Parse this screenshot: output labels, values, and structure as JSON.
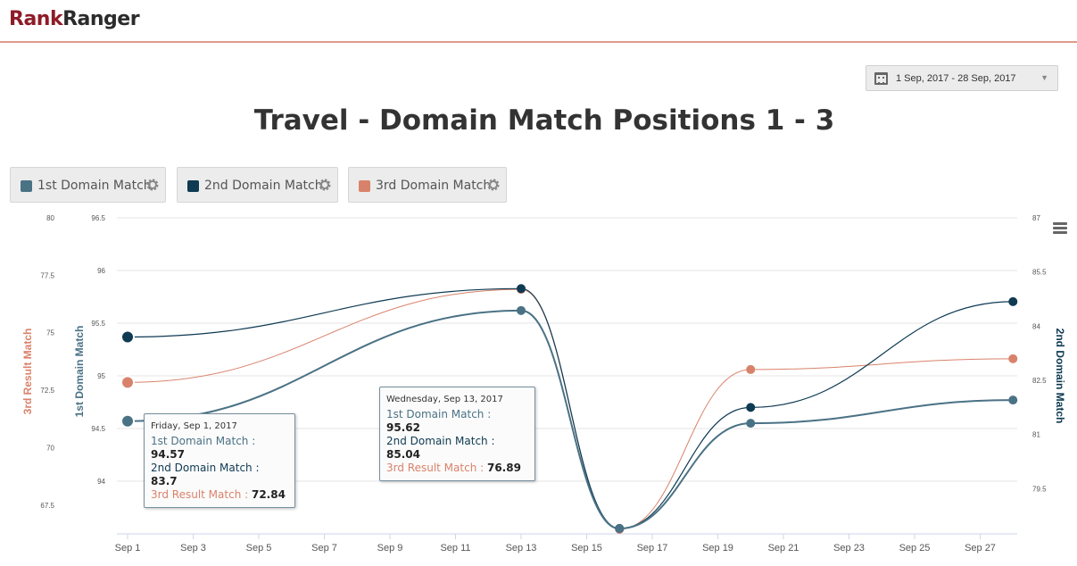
{
  "header": {
    "logo_part1": "Rank",
    "logo_part2": "Ranger"
  },
  "date_range": {
    "label": "1 Sep, 2017 - 28 Sep, 2017"
  },
  "legend": [
    {
      "label": "1st Domain Match",
      "color": "#4a7285"
    },
    {
      "label": "2nd Domain Match",
      "color": "#0e3a52"
    },
    {
      "label": "3rd Domain Match",
      "color": "#d9826b"
    }
  ],
  "tooltips": [
    {
      "date": "Friday, Sep 1, 2017",
      "rows": [
        {
          "label": "1st Domain Match",
          "value": "94.57"
        },
        {
          "label": "2nd Domain Match",
          "value": "83.7"
        },
        {
          "label": "3rd Result Match",
          "value": "72.84"
        }
      ]
    },
    {
      "date": "Wednesday, Sep 13, 2017",
      "rows": [
        {
          "label": "1st Domain Match",
          "value": "95.62"
        },
        {
          "label": "2nd Domain Match",
          "value": "85.04"
        },
        {
          "label": "3rd Result Match",
          "value": "76.89"
        }
      ]
    }
  ],
  "chart_data": {
    "type": "line",
    "title": "Travel - Domain Match Positions 1 - 3",
    "x": [
      "2017-09-01",
      "2017-09-13",
      "2017-09-16",
      "2017-09-20",
      "2017-09-28"
    ],
    "x_tick_labels": [
      "Sep 1",
      "Sep 3",
      "Sep 5",
      "Sep 7",
      "Sep 9",
      "Sep 11",
      "Sep 13",
      "Sep 15",
      "Sep 17",
      "Sep 19",
      "Sep 21",
      "Sep 23",
      "Sep 25",
      "Sep 27"
    ],
    "axes": {
      "left_inner": {
        "label": "1st Domain Match",
        "range": [
          93.5,
          96.5
        ],
        "ticks": [
          "96.5",
          "96",
          "95.5",
          "95",
          "94.5",
          "94"
        ],
        "color": "#4a7285"
      },
      "left_outer": {
        "label": "3rd Result Match",
        "range": [
          66.25,
          80
        ],
        "ticks": [
          "80",
          "77.5",
          "75",
          "72.5",
          "70",
          "67.5"
        ],
        "color": "#d9826b"
      },
      "right": {
        "label": "2nd Domain Match",
        "range": [
          78.25,
          87
        ],
        "ticks": [
          "87",
          "85.5",
          "84",
          "82.5",
          "81",
          "79.5"
        ],
        "color": "#0e3a52"
      }
    },
    "series": [
      {
        "name": "1st Domain Match",
        "axis": "left_inner",
        "values": [
          94.57,
          95.62,
          93.55,
          94.55,
          94.77
        ]
      },
      {
        "name": "2nd Domain Match",
        "axis": "right",
        "values": [
          83.7,
          85.04,
          78.4,
          81.75,
          84.68
        ]
      },
      {
        "name": "3rd Result Match",
        "axis": "left_outer",
        "values": [
          72.84,
          76.89,
          66.45,
          73.4,
          73.87
        ]
      }
    ],
    "grid": "horizontal",
    "legend": "top-left"
  }
}
